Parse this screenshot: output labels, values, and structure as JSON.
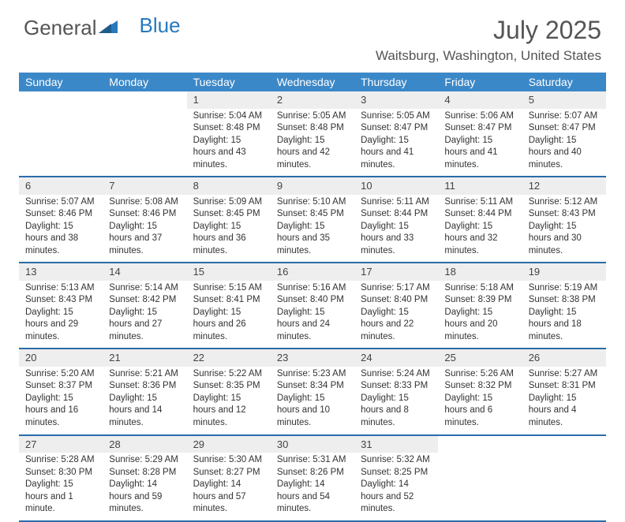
{
  "logo": {
    "part1": "General",
    "part2": "Blue"
  },
  "title": "July 2025",
  "location": "Waitsburg, Washington, United States",
  "header_bg": "#3b88c8",
  "border_color": "#2a6ca8",
  "shade_bg": "#eeeeee",
  "day_names": [
    "Sunday",
    "Monday",
    "Tuesday",
    "Wednesday",
    "Thursday",
    "Friday",
    "Saturday"
  ],
  "weeks": [
    [
      null,
      null,
      {
        "n": "1",
        "sr": "5:04 AM",
        "ss": "8:48 PM",
        "dl": "15 hours and 43 minutes."
      },
      {
        "n": "2",
        "sr": "5:05 AM",
        "ss": "8:48 PM",
        "dl": "15 hours and 42 minutes."
      },
      {
        "n": "3",
        "sr": "5:05 AM",
        "ss": "8:47 PM",
        "dl": "15 hours and 41 minutes."
      },
      {
        "n": "4",
        "sr": "5:06 AM",
        "ss": "8:47 PM",
        "dl": "15 hours and 41 minutes."
      },
      {
        "n": "5",
        "sr": "5:07 AM",
        "ss": "8:47 PM",
        "dl": "15 hours and 40 minutes."
      }
    ],
    [
      {
        "n": "6",
        "sr": "5:07 AM",
        "ss": "8:46 PM",
        "dl": "15 hours and 38 minutes."
      },
      {
        "n": "7",
        "sr": "5:08 AM",
        "ss": "8:46 PM",
        "dl": "15 hours and 37 minutes."
      },
      {
        "n": "8",
        "sr": "5:09 AM",
        "ss": "8:45 PM",
        "dl": "15 hours and 36 minutes."
      },
      {
        "n": "9",
        "sr": "5:10 AM",
        "ss": "8:45 PM",
        "dl": "15 hours and 35 minutes."
      },
      {
        "n": "10",
        "sr": "5:11 AM",
        "ss": "8:44 PM",
        "dl": "15 hours and 33 minutes."
      },
      {
        "n": "11",
        "sr": "5:11 AM",
        "ss": "8:44 PM",
        "dl": "15 hours and 32 minutes."
      },
      {
        "n": "12",
        "sr": "5:12 AM",
        "ss": "8:43 PM",
        "dl": "15 hours and 30 minutes."
      }
    ],
    [
      {
        "n": "13",
        "sr": "5:13 AM",
        "ss": "8:43 PM",
        "dl": "15 hours and 29 minutes."
      },
      {
        "n": "14",
        "sr": "5:14 AM",
        "ss": "8:42 PM",
        "dl": "15 hours and 27 minutes."
      },
      {
        "n": "15",
        "sr": "5:15 AM",
        "ss": "8:41 PM",
        "dl": "15 hours and 26 minutes."
      },
      {
        "n": "16",
        "sr": "5:16 AM",
        "ss": "8:40 PM",
        "dl": "15 hours and 24 minutes."
      },
      {
        "n": "17",
        "sr": "5:17 AM",
        "ss": "8:40 PM",
        "dl": "15 hours and 22 minutes."
      },
      {
        "n": "18",
        "sr": "5:18 AM",
        "ss": "8:39 PM",
        "dl": "15 hours and 20 minutes."
      },
      {
        "n": "19",
        "sr": "5:19 AM",
        "ss": "8:38 PM",
        "dl": "15 hours and 18 minutes."
      }
    ],
    [
      {
        "n": "20",
        "sr": "5:20 AM",
        "ss": "8:37 PM",
        "dl": "15 hours and 16 minutes."
      },
      {
        "n": "21",
        "sr": "5:21 AM",
        "ss": "8:36 PM",
        "dl": "15 hours and 14 minutes."
      },
      {
        "n": "22",
        "sr": "5:22 AM",
        "ss": "8:35 PM",
        "dl": "15 hours and 12 minutes."
      },
      {
        "n": "23",
        "sr": "5:23 AM",
        "ss": "8:34 PM",
        "dl": "15 hours and 10 minutes."
      },
      {
        "n": "24",
        "sr": "5:24 AM",
        "ss": "8:33 PM",
        "dl": "15 hours and 8 minutes."
      },
      {
        "n": "25",
        "sr": "5:26 AM",
        "ss": "8:32 PM",
        "dl": "15 hours and 6 minutes."
      },
      {
        "n": "26",
        "sr": "5:27 AM",
        "ss": "8:31 PM",
        "dl": "15 hours and 4 minutes."
      }
    ],
    [
      {
        "n": "27",
        "sr": "5:28 AM",
        "ss": "8:30 PM",
        "dl": "15 hours and 1 minute."
      },
      {
        "n": "28",
        "sr": "5:29 AM",
        "ss": "8:28 PM",
        "dl": "14 hours and 59 minutes."
      },
      {
        "n": "29",
        "sr": "5:30 AM",
        "ss": "8:27 PM",
        "dl": "14 hours and 57 minutes."
      },
      {
        "n": "30",
        "sr": "5:31 AM",
        "ss": "8:26 PM",
        "dl": "14 hours and 54 minutes."
      },
      {
        "n": "31",
        "sr": "5:32 AM",
        "ss": "8:25 PM",
        "dl": "14 hours and 52 minutes."
      },
      null,
      null
    ]
  ],
  "labels": {
    "sunrise": "Sunrise: ",
    "sunset": "Sunset: ",
    "daylight": "Daylight: "
  }
}
